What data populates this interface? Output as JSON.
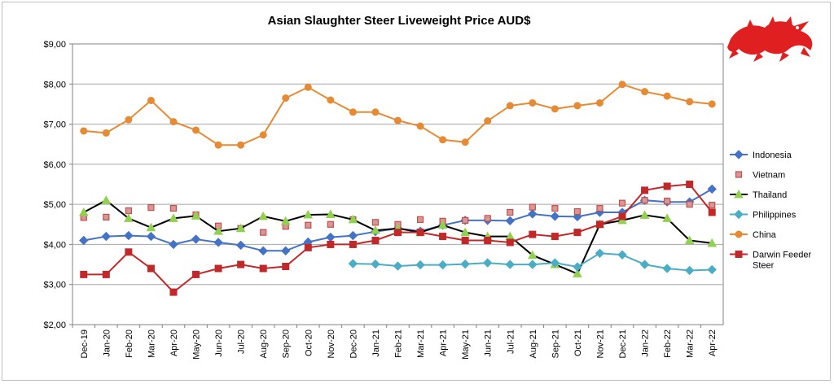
{
  "chart_data": {
    "type": "line",
    "title": "Asian Slaughter Steer Liveweight Price AUD$",
    "xlabel": "",
    "ylabel": "",
    "ylim": [
      2,
      9
    ],
    "yticks": [
      "$2,00",
      "$3,00",
      "$4,00",
      "$5,00",
      "$6,00",
      "$7,00",
      "$8,00",
      "$9,00"
    ],
    "grid": "horizontal",
    "legend": "right",
    "categories": [
      "Dec-19",
      "Jan-20",
      "Feb-20",
      "Mar-20",
      "Apr-20",
      "May-20",
      "Jun-20",
      "Jul-20",
      "Aug-20",
      "Sep-20",
      "Oct-20",
      "Nov-20",
      "Dec-20",
      "Jan-21",
      "Feb-21",
      "Mar-21",
      "Apr-21",
      "May-21",
      "Jun-21",
      "Jul-21",
      "Aug-21",
      "Sep-21",
      "Oct-21",
      "Nov-21",
      "Dec-21",
      "Jan-22",
      "Feb-22",
      "Mar-22",
      "Apr-22"
    ],
    "series": [
      {
        "name": "Indonesia",
        "color": "#4472c4",
        "marker": "diamond",
        "line": true,
        "values": [
          4.1,
          4.2,
          4.22,
          4.2,
          4.0,
          4.13,
          4.05,
          3.98,
          3.84,
          3.84,
          4.06,
          4.18,
          4.22,
          4.32,
          4.4,
          4.33,
          4.48,
          4.6,
          4.6,
          4.59,
          4.76,
          4.7,
          4.69,
          4.8,
          4.8,
          5.1,
          5.06,
          5.06,
          5.38
        ]
      },
      {
        "name": "Vietnam",
        "color": "#c0504d",
        "marker": "square-light",
        "line": false,
        "values": [
          4.67,
          4.68,
          4.84,
          4.92,
          4.9,
          4.74,
          4.46,
          4.4,
          4.3,
          4.45,
          4.48,
          4.5,
          4.62,
          4.55,
          4.5,
          4.62,
          4.58,
          4.6,
          4.65,
          4.8,
          4.93,
          4.9,
          4.82,
          4.9,
          5.03,
          5.1,
          5.08,
          5.0,
          4.98
        ]
      },
      {
        "name": "Thailand",
        "color": "#000000",
        "marker": "triangle",
        "markerColor": "#92d050",
        "line": true,
        "values": [
          4.8,
          5.1,
          4.65,
          4.42,
          4.65,
          4.71,
          4.33,
          4.4,
          4.7,
          4.58,
          4.74,
          4.75,
          4.62,
          4.35,
          4.4,
          4.3,
          4.48,
          4.3,
          4.2,
          4.2,
          3.73,
          3.5,
          3.27,
          4.5,
          4.6,
          4.73,
          4.65,
          4.1,
          4.03
        ]
      },
      {
        "name": "Philippines",
        "color": "#4bacc6",
        "marker": "diamond",
        "line": true,
        "values": [
          null,
          null,
          null,
          null,
          null,
          null,
          null,
          null,
          null,
          null,
          null,
          null,
          3.52,
          3.51,
          3.46,
          3.49,
          3.49,
          3.51,
          3.54,
          3.5,
          3.5,
          3.54,
          3.44,
          3.78,
          3.74,
          3.5,
          3.4,
          3.35,
          3.37
        ]
      },
      {
        "name": "China",
        "color": "#e68a33",
        "marker": "circle",
        "line": true,
        "values": [
          6.83,
          6.78,
          7.11,
          7.59,
          7.06,
          6.85,
          6.48,
          6.48,
          6.73,
          7.65,
          7.92,
          7.6,
          7.3,
          7.3,
          7.09,
          6.95,
          6.61,
          6.55,
          7.08,
          7.46,
          7.53,
          7.38,
          7.46,
          7.53,
          7.99,
          7.81,
          7.7,
          7.56,
          7.5
        ]
      },
      {
        "name": "Darwin Feeder Steer",
        "color": "#c0282a",
        "marker": "square",
        "line": true,
        "values": [
          3.25,
          3.25,
          3.81,
          3.4,
          2.81,
          3.25,
          3.4,
          3.5,
          3.4,
          3.45,
          3.92,
          4.0,
          4.0,
          4.1,
          4.3,
          4.3,
          4.2,
          4.1,
          4.1,
          4.05,
          4.25,
          4.2,
          4.3,
          4.5,
          4.7,
          5.35,
          5.45,
          5.5,
          4.8
        ]
      }
    ]
  },
  "logo": {
    "name": "red-dragon-logo",
    "color": "#e02020"
  }
}
